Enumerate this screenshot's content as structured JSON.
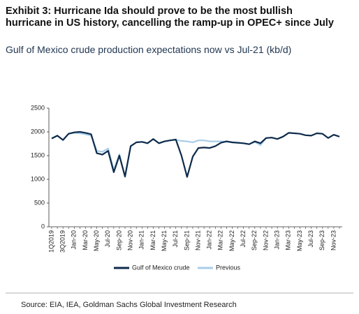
{
  "chart_data": {
    "type": "line",
    "title": "Exhibit 3: Hurricane Ida should prove to be the most bullish hurricane in US history, cancelling the ramp-up in OPEC+ since July",
    "subtitle": "Gulf of Mexico crude production expectations now vs Jul-21 (kb/d)",
    "source": "Source: EIA, IEA, Goldman Sachs Global Investment Research",
    "categories": [
      "1Q2019",
      null,
      "3Q2019",
      null,
      "Jan-20",
      null,
      "Mar-20",
      null,
      "May-20",
      null,
      "Jul-20",
      null,
      "Sep-20",
      null,
      "Nov-20",
      null,
      "Jan-21",
      null,
      "Mar-21",
      null,
      "May-21",
      null,
      "Jul-21",
      null,
      "Sep-21",
      null,
      "Nov-21",
      null,
      "Jan-22",
      null,
      "Mar-22",
      null,
      "May-22",
      null,
      "Jul-22",
      null,
      "Sep-22",
      null,
      "Nov-22",
      null,
      "Jan-23",
      null,
      "Mar-23",
      null,
      "May-23",
      null,
      "Jul-23",
      null,
      "Sep-23",
      null,
      "Nov-23",
      null
    ],
    "series": [
      {
        "name": "Gulf of Mexico crude",
        "color": "#0d2b4b",
        "values": [
          1860,
          1920,
          1830,
          1960,
          1990,
          2000,
          1980,
          1950,
          1550,
          1520,
          1600,
          1150,
          1500,
          1060,
          1700,
          1780,
          1790,
          1760,
          1850,
          1760,
          1800,
          1820,
          1840,
          1500,
          1050,
          1480,
          1660,
          1670,
          1660,
          1700,
          1770,
          1800,
          1780,
          1770,
          1760,
          1740,
          1800,
          1760,
          1870,
          1880,
          1850,
          1900,
          1980,
          1970,
          1960,
          1930,
          1920,
          1970,
          1960,
          1870,
          1940,
          1900
        ]
      },
      {
        "name": "Previous",
        "color": "#a9cde8",
        "values": [
          1860,
          1920,
          1830,
          1960,
          1980,
          1970,
          1950,
          1920,
          1600,
          1580,
          1650,
          1200,
          1530,
          1050,
          1700,
          1780,
          1790,
          1760,
          1850,
          1760,
          1800,
          1820,
          1830,
          1810,
          1800,
          1780,
          1820,
          1820,
          1800,
          1800,
          1800,
          1790,
          1780,
          1770,
          1760,
          1740,
          1790,
          1720,
          1870,
          1880,
          null,
          null,
          null,
          null,
          null,
          null,
          null,
          null,
          null,
          null,
          null,
          null
        ]
      }
    ],
    "ylim": [
      0,
      2500
    ],
    "yticks": [
      0,
      500,
      1000,
      1500,
      2000,
      2500
    ],
    "grid": false,
    "legend": "bottom"
  }
}
